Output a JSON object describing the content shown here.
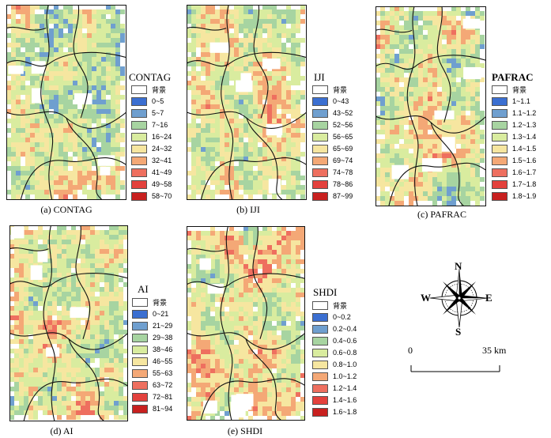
{
  "palette": {
    "background": "#ffffff",
    "blue_dark": "#3b6fd1",
    "blue_mid": "#6f9fcf",
    "green": "#a7d4a1",
    "yellow_green": "#d9ec9f",
    "yellow": "#f6e6a0",
    "orange": "#f4a876",
    "red_light": "#ee6f5f",
    "red": "#e3413d",
    "red_dark": "#c8201f"
  },
  "panels": [
    {
      "id": "a",
      "caption": "(a) CONTAG",
      "legend_title": "CONTAG",
      "bias": 0.35,
      "items": [
        "背景",
        "0~5",
        "5~7",
        "7~16",
        "16~24",
        "24~32",
        "32~41",
        "41~49",
        "49~58",
        "58~70"
      ]
    },
    {
      "id": "b",
      "caption": "(b) IJI",
      "legend_title": "IJI",
      "bias": 0.55,
      "items": [
        "背景",
        "0~43",
        "43~52",
        "52~56",
        "56~65",
        "65~69",
        "69~74",
        "74~78",
        "78~86",
        "87~99"
      ]
    },
    {
      "id": "c",
      "caption": "(c) PAFRAC",
      "legend_title": "PAFRAC",
      "bias": 0.4,
      "items": [
        "背景",
        "1~1.1",
        "1.1~1.2",
        "1.2~1.3",
        "1.3~1.4",
        "1.4~1.5",
        "1.5~1.6",
        "1.6~1.7",
        "1.7~1.8",
        "1.8~1.9"
      ]
    },
    {
      "id": "d",
      "caption": "(d) AI",
      "legend_title": "AI",
      "bias": 0.5,
      "items": [
        "背景",
        "0~21",
        "21~29",
        "29~38",
        "38~46",
        "46~55",
        "55~63",
        "63~72",
        "72~81",
        "81~94"
      ]
    },
    {
      "id": "e",
      "caption": "(e) SHDI",
      "legend_title": "SHDI",
      "bias": 0.62,
      "items": [
        "背景",
        "0~0.2",
        "0.2~0.4",
        "0.4~0.6",
        "0.6~0.8",
        "0.8~1.0",
        "1.0~1.2",
        "1.2~1.4",
        "1.4~1.6",
        "1.6~1.8"
      ]
    }
  ],
  "compass": {
    "n": "N",
    "s": "S",
    "e": "E",
    "w": "W"
  },
  "scale_bar": {
    "start": "0",
    "end": "35 km"
  },
  "class_colors": [
    "#ffffff",
    "#3b6fd1",
    "#6f9fcf",
    "#a7d4a1",
    "#d9ec9f",
    "#f6e6a0",
    "#f4a876",
    "#ee6f5f",
    "#e3413d",
    "#c8201f"
  ]
}
